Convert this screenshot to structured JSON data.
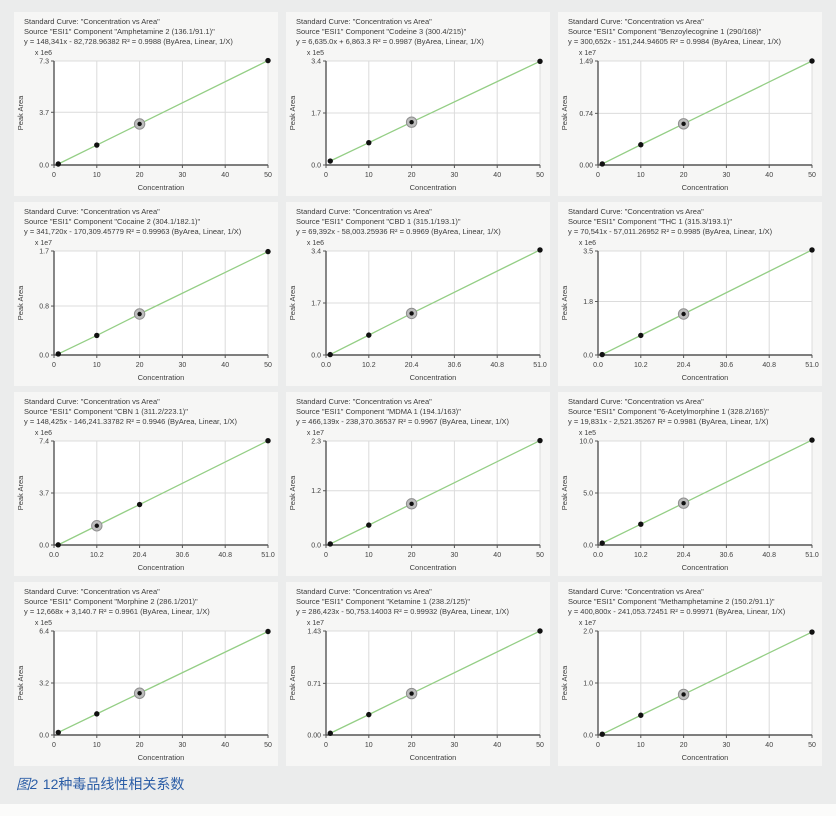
{
  "page": {
    "background": "#ebecec",
    "panel_background": "#f6f6f5",
    "caption": {
      "prefix": "图2",
      "text": "12种毒品线性相关系数",
      "color": "#2b5da6"
    }
  },
  "style": {
    "line_color": "#94ce85",
    "point_color": "#111111",
    "selected_halo_fill": "#bdbdbd",
    "selected_halo_stroke": "#8f8f8f",
    "grid_color": "#dcdcdc",
    "spine_color": "#555555",
    "border_color": "#c9c9c9",
    "plot_background": "#ffffff",
    "header_text_color": "#3b3b3b",
    "tick_text_color": "#3f3f3f"
  },
  "chart_data": [
    {
      "type": "scatter",
      "title": "Standard Curve: \"Concentration vs Area\"",
      "source": "Source \"ESI1\" Component \"Amphetamine 2 (136.1/91.1)\"",
      "equation": "y = 148,341x - 82,728.96382    R² = 0.9988  (ByArea, Linear, 1/X)",
      "r2": 0.9988,
      "scale_label": "x 1e6",
      "xlabel": "Concentration",
      "ylabel": "Peak Area",
      "x_tick_labels": [
        "0",
        "10",
        "20",
        "30",
        "40",
        "50"
      ],
      "y_tick_labels": [
        "0.0",
        "3.7",
        "7.3"
      ],
      "points": {
        "x": [
          1,
          10,
          20,
          50
        ],
        "y": [
          0.07,
          1.4,
          2.88,
          7.33
        ]
      },
      "selected_point_index": 2
    },
    {
      "type": "scatter",
      "title": "Standard Curve: \"Concentration vs Area\"",
      "source": "Source \"ESI1\" Component \"Codeine 3 (300.4/215)\"",
      "equation": "y = 6,635.0x + 6,863.3    R² = 0.9987  (ByArea, Linear, 1/X)",
      "r2": 0.9987,
      "scale_label": "x 1e5",
      "xlabel": "Concentration",
      "ylabel": "Peak Area",
      "x_tick_labels": [
        "0",
        "10",
        "20",
        "30",
        "40",
        "50"
      ],
      "y_tick_labels": [
        "0.0",
        "1.7",
        "3.4"
      ],
      "points": {
        "x": [
          1,
          10,
          20,
          50
        ],
        "y": [
          0.13,
          0.73,
          1.4,
          3.39
        ]
      },
      "selected_point_index": 2
    },
    {
      "type": "scatter",
      "title": "Standard Curve: \"Concentration vs Area\"",
      "source": "Source \"ESI1\" Component \"Benzoylecognine 1 (290/168)\"",
      "equation": "y = 300,652x - 151,244.94605    R² = 0.9984  (ByArea, Linear, 1/X)",
      "r2": 0.9984,
      "scale_label": "x 1e7",
      "xlabel": "Concentration",
      "ylabel": "Peak Area",
      "x_tick_labels": [
        "0",
        "10",
        "20",
        "30",
        "40",
        "50"
      ],
      "y_tick_labels": [
        "0.00",
        "0.74",
        "1.49"
      ],
      "points": {
        "x": [
          1,
          10,
          20,
          50
        ],
        "y": [
          0.015,
          0.29,
          0.59,
          1.49
        ]
      },
      "selected_point_index": 2
    },
    {
      "type": "scatter",
      "title": "Standard Curve: \"Concentration vs Area\"",
      "source": "Source \"ESI1\" Component \"Cocaine 2 (304.1/182.1)\"",
      "equation": "y = 341,720x - 170,309.45779    R² = 0.99963  (ByArea, Linear, 1/X)",
      "r2": 0.99963,
      "scale_label": "x 1e7",
      "xlabel": "Concentration",
      "ylabel": "Peak Area",
      "x_tick_labels": [
        "0",
        "10",
        "20",
        "30",
        "40",
        "50"
      ],
      "y_tick_labels": [
        "0.0",
        "0.8",
        "1.7"
      ],
      "points": {
        "x": [
          1,
          10,
          20,
          50
        ],
        "y": [
          0.017,
          0.32,
          0.67,
          1.69
        ]
      },
      "selected_point_index": 2
    },
    {
      "type": "scatter",
      "title": "Standard Curve: \"Concentration vs Area\"",
      "source": "Source \"ESI1\" Component \"CBD 1 (315.1/193.1)\"",
      "equation": "y = 69,392x - 58,003.25936    R² = 0.9969  (ByArea, Linear, 1/X)",
      "r2": 0.9969,
      "scale_label": "x 1e6",
      "xlabel": "Concentration",
      "ylabel": "Peak Area",
      "x_tick_labels": [
        "0.0",
        "10.2",
        "20.4",
        "30.6",
        "40.8",
        "51.0"
      ],
      "y_tick_labels": [
        "0.0",
        "1.7",
        "3.4"
      ],
      "points": {
        "x": [
          1,
          10.2,
          20.4,
          51
        ],
        "y": [
          0.013,
          0.65,
          1.36,
          3.48
        ]
      },
      "selected_point_index": 2
    },
    {
      "type": "scatter",
      "title": "Standard Curve: \"Concentration vs Area\"",
      "source": "Source \"ESI1\" Component \"THC 1 (315.3/193.1)\"",
      "equation": "y = 70,541x - 57,011.26952    R² = 0.9985  (ByArea, Linear, 1/X)",
      "r2": 0.9985,
      "scale_label": "x 1e6",
      "xlabel": "Concentration",
      "ylabel": "Peak Area",
      "x_tick_labels": [
        "0.0",
        "10.2",
        "20.4",
        "30.6",
        "40.8",
        "51.0"
      ],
      "y_tick_labels": [
        "0.0",
        "1.8",
        "3.5"
      ],
      "points": {
        "x": [
          1,
          10.2,
          20.4,
          51
        ],
        "y": [
          0.015,
          0.66,
          1.38,
          3.54
        ]
      },
      "selected_point_index": 2
    },
    {
      "type": "scatter",
      "title": "Standard Curve: \"Concentration vs Area\"",
      "source": "Source \"ESI1\" Component \"CBN 1 (311.2/223.1)\"",
      "equation": "y = 148,425x - 146,241.33782    R² = 0.9946  (ByArea, Linear, 1/X)",
      "r2": 0.9946,
      "scale_label": "x 1e6",
      "xlabel": "Concentration",
      "ylabel": "Peak Area",
      "x_tick_labels": [
        "0.0",
        "10.2",
        "20.4",
        "30.6",
        "40.8",
        "51.0"
      ],
      "y_tick_labels": [
        "0.0",
        "3.7",
        "7.4"
      ],
      "points": {
        "x": [
          1,
          10.2,
          20.4,
          51
        ],
        "y": [
          0.01,
          1.37,
          2.88,
          7.42
        ]
      },
      "selected_point_index": 1
    },
    {
      "type": "scatter",
      "title": "Standard Curve: \"Concentration vs Area\"",
      "source": "Source \"ESI1\" Component \"MDMA 1 (194.1/163)\"",
      "equation": "y = 466,139x - 238,370.36537    R² = 0.9967  (ByArea, Linear, 1/X)",
      "r2": 0.9967,
      "scale_label": "x 1e7",
      "xlabel": "Concentration",
      "ylabel": "Peak Area",
      "x_tick_labels": [
        "0",
        "10",
        "20",
        "30",
        "40",
        "50"
      ],
      "y_tick_labels": [
        "0.0",
        "1.2",
        "2.3"
      ],
      "points": {
        "x": [
          1,
          10,
          20,
          50
        ],
        "y": [
          0.023,
          0.44,
          0.91,
          2.31
        ]
      },
      "selected_point_index": 2
    },
    {
      "type": "scatter",
      "title": "Standard Curve: \"Concentration vs Area\"",
      "source": "Source \"ESI1\" Component \"6-Acetylmorphine 1 (328.2/165)\"",
      "equation": "y = 19,831x - 2,521.35267    R² = 0.9981  (ByArea, Linear, 1/X)",
      "r2": 0.9981,
      "scale_label": "x 1e5",
      "xlabel": "Concentration",
      "ylabel": "Peak Area",
      "x_tick_labels": [
        "0.0",
        "10.2",
        "20.4",
        "30.6",
        "40.8",
        "51.0"
      ],
      "y_tick_labels": [
        "0.0",
        "5.0",
        "10.0"
      ],
      "points": {
        "x": [
          1,
          10.2,
          20.4,
          51
        ],
        "y": [
          0.18,
          2.0,
          4.02,
          10.09
        ]
      },
      "selected_point_index": 2
    },
    {
      "type": "scatter",
      "title": "Standard Curve: \"Concentration vs Area\"",
      "source": "Source \"ESI1\" Component \"Morphine 2 (286.1/201)\"",
      "equation": "y = 12,668x + 3,140.7    R² = 0.9961  (ByArea, Linear, 1/X)",
      "r2": 0.9961,
      "scale_label": "x 1e5",
      "xlabel": "Concentration",
      "ylabel": "Peak Area",
      "x_tick_labels": [
        "0",
        "10",
        "20",
        "30",
        "40",
        "50"
      ],
      "y_tick_labels": [
        "0.0",
        "3.2",
        "6.4"
      ],
      "points": {
        "x": [
          1,
          10,
          20,
          50
        ],
        "y": [
          0.16,
          1.3,
          2.57,
          6.37
        ]
      },
      "selected_point_index": 2
    },
    {
      "type": "scatter",
      "title": "Standard Curve: \"Concentration vs Area\"",
      "source": "Source \"ESI1\" Component \"Ketamine 1 (238.2/125)\"",
      "equation": "y = 286,423x - 50,753.14003    R² = 0.99932  (ByArea, Linear, 1/X)",
      "r2": 0.99932,
      "scale_label": "x 1e7",
      "xlabel": "Concentration",
      "ylabel": "Peak Area",
      "x_tick_labels": [
        "0",
        "10",
        "20",
        "30",
        "40",
        "50"
      ],
      "y_tick_labels": [
        "0.00",
        "0.71",
        "1.43"
      ],
      "points": {
        "x": [
          1,
          10,
          20,
          50
        ],
        "y": [
          0.024,
          0.28,
          0.57,
          1.43
        ]
      },
      "selected_point_index": 2
    },
    {
      "type": "scatter",
      "title": "Standard Curve: \"Concentration vs Area\"",
      "source": "Source \"ESI1\" Component \"Methamphetamine 2 (150.2/91.1)\"",
      "equation": "y = 400,800x - 241,053.72451    R² = 0.99971  (ByArea, Linear, 1/X)",
      "r2": 0.99971,
      "scale_label": "x 1e7",
      "xlabel": "Concentration",
      "ylabel": "Peak Area",
      "x_tick_labels": [
        "0",
        "10",
        "20",
        "30",
        "40",
        "50"
      ],
      "y_tick_labels": [
        "0.0",
        "1.0",
        "2.0"
      ],
      "points": {
        "x": [
          1,
          10,
          20,
          50
        ],
        "y": [
          0.016,
          0.38,
          0.78,
          1.98
        ]
      },
      "selected_point_index": 2
    }
  ]
}
